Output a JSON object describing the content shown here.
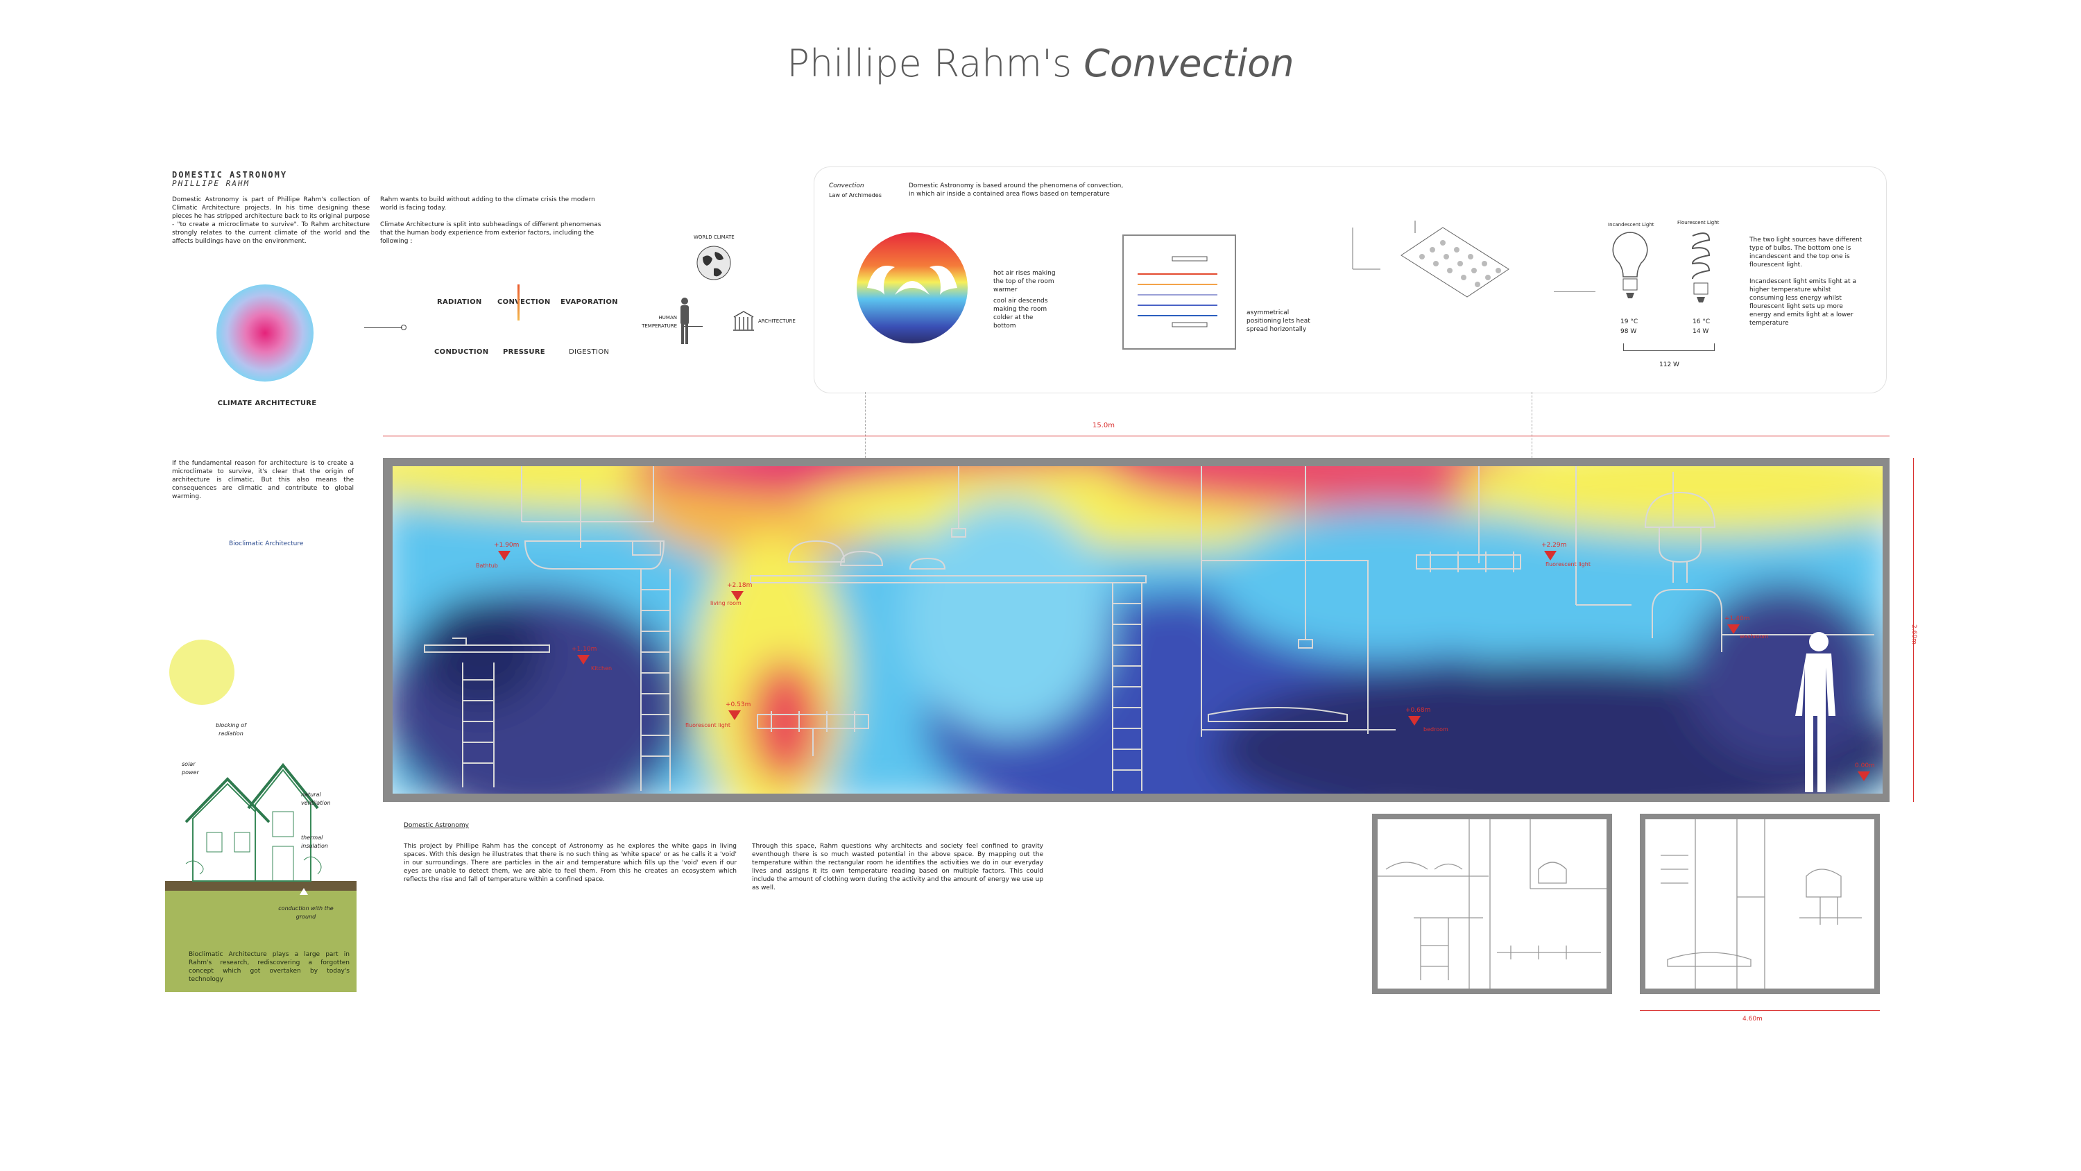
{
  "title": {
    "main": "Phillipe Rahm's",
    "italic": "Convection"
  },
  "intro": {
    "heading": "DOMESTIC ASTRONOMY",
    "subheading": "PHILLIPE RAHM",
    "col1": "Domestic Astronomy is part of Phillipe Rahm's collection of Climatic Architecture projects. In his time designing these pieces he has stripped architecture back to its original purpose - \"to create a microclimate to survive\". To Rahm architecture strongly relates to the current climate of the world and the affects buildings have on the environment.",
    "col2a": "Rahm wants to build without adding to the climate crisis the modern world is facing today.",
    "col2b": "Climate Architecture is split into subheadings of different phenomenas that the human body experience from exterior factors, including the following :"
  },
  "climate": {
    "caption": "CLIMATE ARCHITECTURE",
    "phenomena": [
      "RADIATION",
      "CONVECTION",
      "EVAPORATION",
      "CONDUCTION",
      "PRESSURE",
      "DIGESTION"
    ],
    "world": "WORLD CLIMATE",
    "human": "HUMAN TEMPERATURE",
    "architecture": "ARCHITECTURE"
  },
  "convection_panel": {
    "label": "Convection",
    "sublabel": "Law of Archimedes",
    "desc": "Domestic Astronomy is based around the phenomena of convection, in which air inside a contained area flows based on temperature",
    "hot": "hot air rises making the top of the room warmer",
    "cool": "cool air descends making the room colder at the bottom",
    "asym": "asymmetrical positioning lets heat spread horizontally",
    "bulb1_label": "Incandescent Light",
    "bulb2_label": "Flourescent Light",
    "bulb1_temp": "19 °C",
    "bulb1_watt": "98 W",
    "bulb2_temp": "16 °C",
    "bulb2_watt": "14 W",
    "total": "112 W",
    "light_text1": "The two light sources have different type of bulbs. The bottom one is incandescent and the top one is flourescent light.",
    "light_text2": "Incandescent light emits light at a higher temperature whilst consuming less energy whilst flourescent light sets up more energy and emits light at a lower temperature"
  },
  "section": {
    "width_dim": "15.0m",
    "height_dim": "2.60m",
    "labels": [
      {
        "h": "+1.90m",
        "t": "Bathtub"
      },
      {
        "h": "+1.10m",
        "t": "Kitchen"
      },
      {
        "h": "+2.18m",
        "t": "living room"
      },
      {
        "h": "+0.53m",
        "t": "fluorescent light"
      },
      {
        "h": "+2.29m",
        "t": "fluorescent light"
      },
      {
        "h": "+0.68m",
        "t": "bedroom"
      },
      {
        "h": "+1.40m",
        "t": "washroom"
      },
      {
        "h": "0.00m",
        "t": ""
      }
    ]
  },
  "left_column": {
    "quote": "If the fundamental reason for architecture is to create a microclimate to survive, it's clear that the origin of architecture is climatic. But this also means the consequences are climatic and contribute to global warming.",
    "bio_title": "Bioclimatic Architecture",
    "blocking": "blocking of radiation",
    "solar": "solar power",
    "natural": "natural ventilation",
    "thermal": "thermal insulation",
    "ground": "conduction with the ground",
    "bio_text": "Bioclimatic Architecture plays a large part in Rahm's research, rediscovering a forgotten concept which got overtaken by today's technology"
  },
  "bottom": {
    "heading": "Domestic Astronomy",
    "col1": "This project by Phillipe Rahm has the concept of Astronomy as he explores the white gaps in living spaces. With this design he illustrates that there is no such thing as 'white space' or as he calls it a 'void' in our surroundings. There are particles in the air and temperature which fills up the 'void' even if our eyes are unable to detect them, we are able to feel them. From this he creates an ecosystem which reflects the rise and fall of temperature within a confined space.",
    "col2": "Through this space, Rahm questions why architects and society feel confined to gravity eventhough there is so much wasted potential in the above space. By mapping out the temperature within the rectangular room he identifies the activities we do in our everyday lives and assigns it its own temperature reading based on multiple factors. This could include the amount of clothing worn during the activity and the amount of energy we use up as well.",
    "dim": "4.60m"
  },
  "colors": {
    "red": "#d9302f",
    "blue": "#5cc4ef",
    "navy": "#2b2f6e",
    "yellow": "#f6ef5a",
    "magenta": "#e5356a"
  }
}
